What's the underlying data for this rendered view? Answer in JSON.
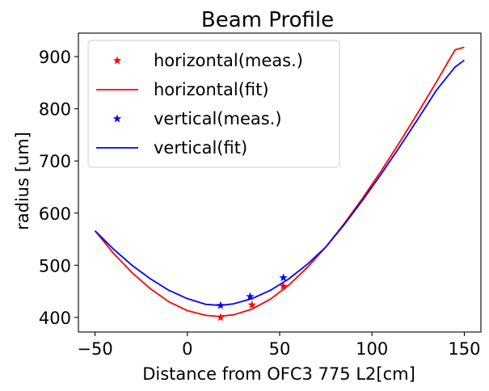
{
  "chart_data": {
    "type": "line",
    "title": "Beam Profile",
    "xlabel": "Distance from OFC3 775 L2[cm]",
    "ylabel": "radius [um]",
    "xlim": [
      -59,
      159
    ],
    "ylim": [
      372,
      945
    ],
    "xticks": [
      -50,
      0,
      50,
      100,
      150
    ],
    "yticks": [
      400,
      500,
      600,
      700,
      800,
      900
    ],
    "xtick_labels": [
      "−50",
      "0",
      "50",
      "100",
      "150"
    ],
    "ytick_labels": [
      "400",
      "500",
      "600",
      "700",
      "800",
      "900"
    ],
    "grid": false,
    "legend_position": "top-left",
    "series": [
      {
        "name": "horizontal(meas.)",
        "kind": "scatter",
        "marker": "star",
        "color": "#ff0000",
        "x": [
          18,
          35,
          52
        ],
        "y": [
          400,
          424,
          460
        ]
      },
      {
        "name": "horizontal(fit)",
        "kind": "line",
        "color": "#ff0000",
        "x": [
          -50,
          -40,
          -30,
          -20,
          -10,
          0,
          10,
          17,
          25,
          35,
          45,
          55,
          65,
          75,
          85,
          95,
          105,
          115,
          125,
          135,
          145,
          150
        ],
        "y": [
          566,
          523,
          486,
          455,
          430,
          413,
          404,
          402,
          405,
          416,
          435,
          462,
          496,
          535,
          580,
          629,
          681,
          736,
          793,
          852,
          913,
          918
        ]
      },
      {
        "name": "vertical(meas.)",
        "kind": "scatter",
        "marker": "star",
        "color": "#0000ff",
        "x": [
          18,
          34,
          52
        ],
        "y": [
          423,
          440,
          476
        ]
      },
      {
        "name": "vertical(fit)",
        "kind": "line",
        "color": "#0000ff",
        "x": [
          -50,
          -40,
          -30,
          -20,
          -10,
          0,
          10,
          18,
          25,
          35,
          45,
          55,
          65,
          75,
          85,
          95,
          105,
          115,
          125,
          135,
          145,
          150
        ],
        "y": [
          566,
          531,
          500,
          474,
          452,
          436,
          425,
          423,
          426,
          436,
          452,
          474,
          502,
          535,
          578,
          625,
          675,
          727,
          781,
          836,
          880,
          893
        ]
      }
    ]
  }
}
